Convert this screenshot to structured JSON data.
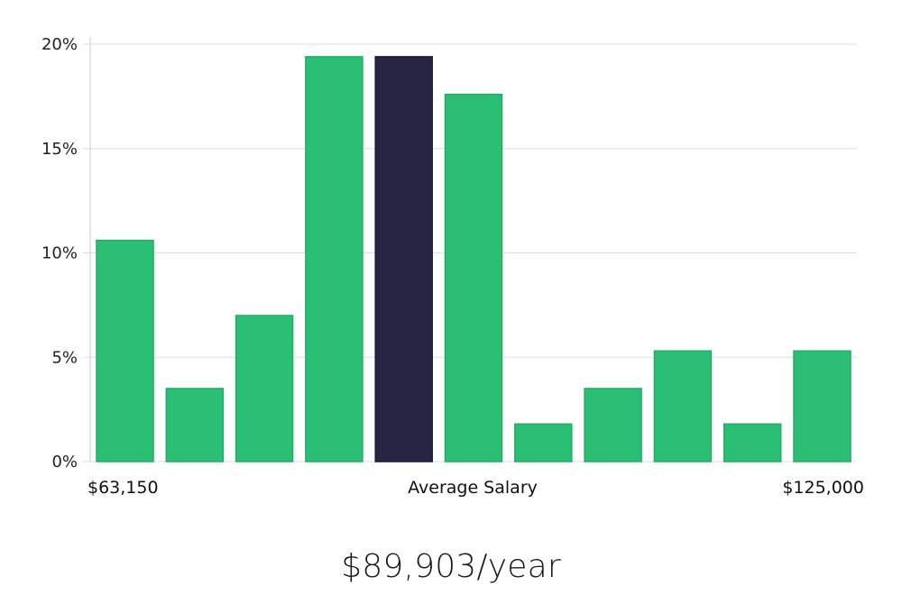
{
  "chart_data": {
    "type": "bar",
    "values": [
      10.6,
      3.5,
      7.0,
      19.4,
      19.4,
      17.6,
      1.8,
      3.5,
      5.3,
      1.8,
      5.3
    ],
    "highlight_index": 4,
    "ylim": [
      0,
      20
    ],
    "y_ticks": [
      "0%",
      "5%",
      "10%",
      "15%",
      "20%"
    ],
    "y_tick_values": [
      0,
      5,
      10,
      15,
      20
    ],
    "x_labels": {
      "min": "$63,150",
      "center": "Average Salary",
      "max": "$125,000"
    },
    "grid": true,
    "colors": {
      "bar": "#2bbf75",
      "bar_stroke": "#22ad68",
      "highlight": "#282444",
      "highlight_stroke": "#1c1a36",
      "grid": "#dddddd",
      "axis": "#cccccc"
    }
  },
  "salary_text": "$89,903/year"
}
